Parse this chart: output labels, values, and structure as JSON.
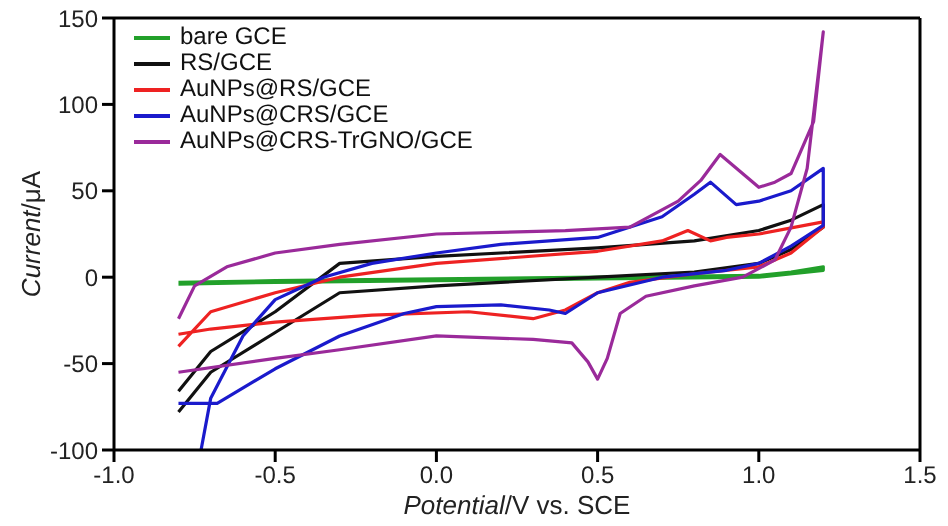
{
  "chart_data": {
    "type": "line",
    "xlabel": "Potential/V vs. SCE",
    "ylabel": "Current/μA",
    "xlim": [
      -1.0,
      1.5
    ],
    "ylim": [
      -100,
      150
    ],
    "xticks": [
      {
        "value": -1.0,
        "label": "-1.0"
      },
      -0.5,
      {
        "value": 0,
        "label": "0.0"
      },
      0.5,
      {
        "value": 1.0,
        "label": "1.0"
      },
      1.5
    ],
    "yticks": [
      -100,
      -50,
      0,
      50,
      100,
      150
    ],
    "legend": "top left",
    "marker": "none",
    "line_style": "solid",
    "series": [
      {
        "name": "bare GCE",
        "color": "#22a02a",
        "x": [
          -0.8,
          -0.5,
          0,
          0.5,
          1.0,
          1.1,
          1.2,
          1.2,
          1.0,
          0.5,
          0,
          -0.5,
          -0.8
        ],
        "values": [
          -3,
          -2,
          -1,
          0,
          1,
          3,
          6,
          4,
          0,
          -1,
          -2,
          -3,
          -4
        ]
      },
      {
        "name": "RS/GCE",
        "color": "#111111",
        "x": [
          -0.8,
          -0.7,
          -0.5,
          -0.3,
          0,
          0.5,
          0.8,
          1.0,
          1.1,
          1.2,
          1.2,
          1.1,
          1.0,
          0.8,
          0.5,
          0,
          -0.3,
          -0.5,
          -0.7,
          -0.8
        ],
        "values": [
          -78,
          -55,
          -32,
          -9,
          -5,
          0,
          3,
          8,
          16,
          29,
          42,
          33,
          27,
          21,
          17,
          12,
          8,
          -20,
          -43,
          -66
        ]
      },
      {
        "name": "AuNPs@RS/GCE",
        "color": "#ee2222",
        "x": [
          -0.8,
          -0.7,
          -0.5,
          -0.3,
          0,
          0.5,
          0.7,
          0.78,
          0.85,
          0.9,
          1.0,
          1.2,
          1.2,
          1.1,
          1.0,
          0.8,
          0.6,
          0.5,
          0.4,
          0.3,
          0.1,
          -0.2,
          -0.5,
          -0.7,
          -0.8
        ],
        "values": [
          -40,
          -20,
          -9,
          0,
          8,
          15,
          21,
          27,
          21,
          23,
          25,
          32,
          29,
          14,
          6,
          2,
          -3,
          -9,
          -19,
          -24,
          -20,
          -22,
          -26,
          -30,
          -33
        ]
      },
      {
        "name": "AuNPs@CRS/GCE",
        "color": "#1a1acc",
        "x": [
          -0.8,
          -0.68,
          -0.5,
          -0.3,
          -0.1,
          0,
          0.2,
          0.35,
          0.4,
          0.5,
          0.7,
          0.9,
          1.0,
          1.1,
          1.2,
          1.2,
          1.1,
          1.0,
          0.93,
          0.85,
          0.8,
          0.7,
          0.5,
          0.2,
          0,
          -0.2,
          -0.35,
          -0.5,
          -0.6,
          -0.7,
          -0.73
        ],
        "values": [
          -73,
          -73,
          -53,
          -34,
          -21,
          -17,
          -16,
          -19,
          -21,
          -9,
          0,
          4,
          8,
          18,
          30,
          63,
          50,
          44,
          42,
          55,
          48,
          35,
          23,
          19,
          14,
          8,
          0,
          -13,
          -34,
          -70,
          -100
        ]
      },
      {
        "name": "AuNPs@CRS-TrGNO/GCE",
        "color": "#9a2a9a",
        "x": [
          -0.8,
          -0.5,
          -0.3,
          0,
          0.3,
          0.42,
          0.47,
          0.5,
          0.53,
          0.57,
          0.65,
          0.8,
          0.95,
          1.05,
          1.1,
          1.15,
          1.2,
          1.2,
          1.17,
          1.1,
          1.05,
          1.0,
          0.88,
          0.82,
          0.75,
          0.6,
          0.4,
          0,
          -0.3,
          -0.5,
          -0.65,
          -0.75,
          -0.8
        ],
        "values": [
          -55,
          -47,
          -42,
          -34,
          -36,
          -38,
          -49,
          -59,
          -47,
          -21,
          -11,
          -5,
          0,
          10,
          29,
          63,
          142,
          142,
          90,
          60,
          55,
          52,
          71,
          56,
          44,
          29,
          27,
          25,
          19,
          14,
          6,
          -5,
          -24
        ]
      }
    ]
  }
}
